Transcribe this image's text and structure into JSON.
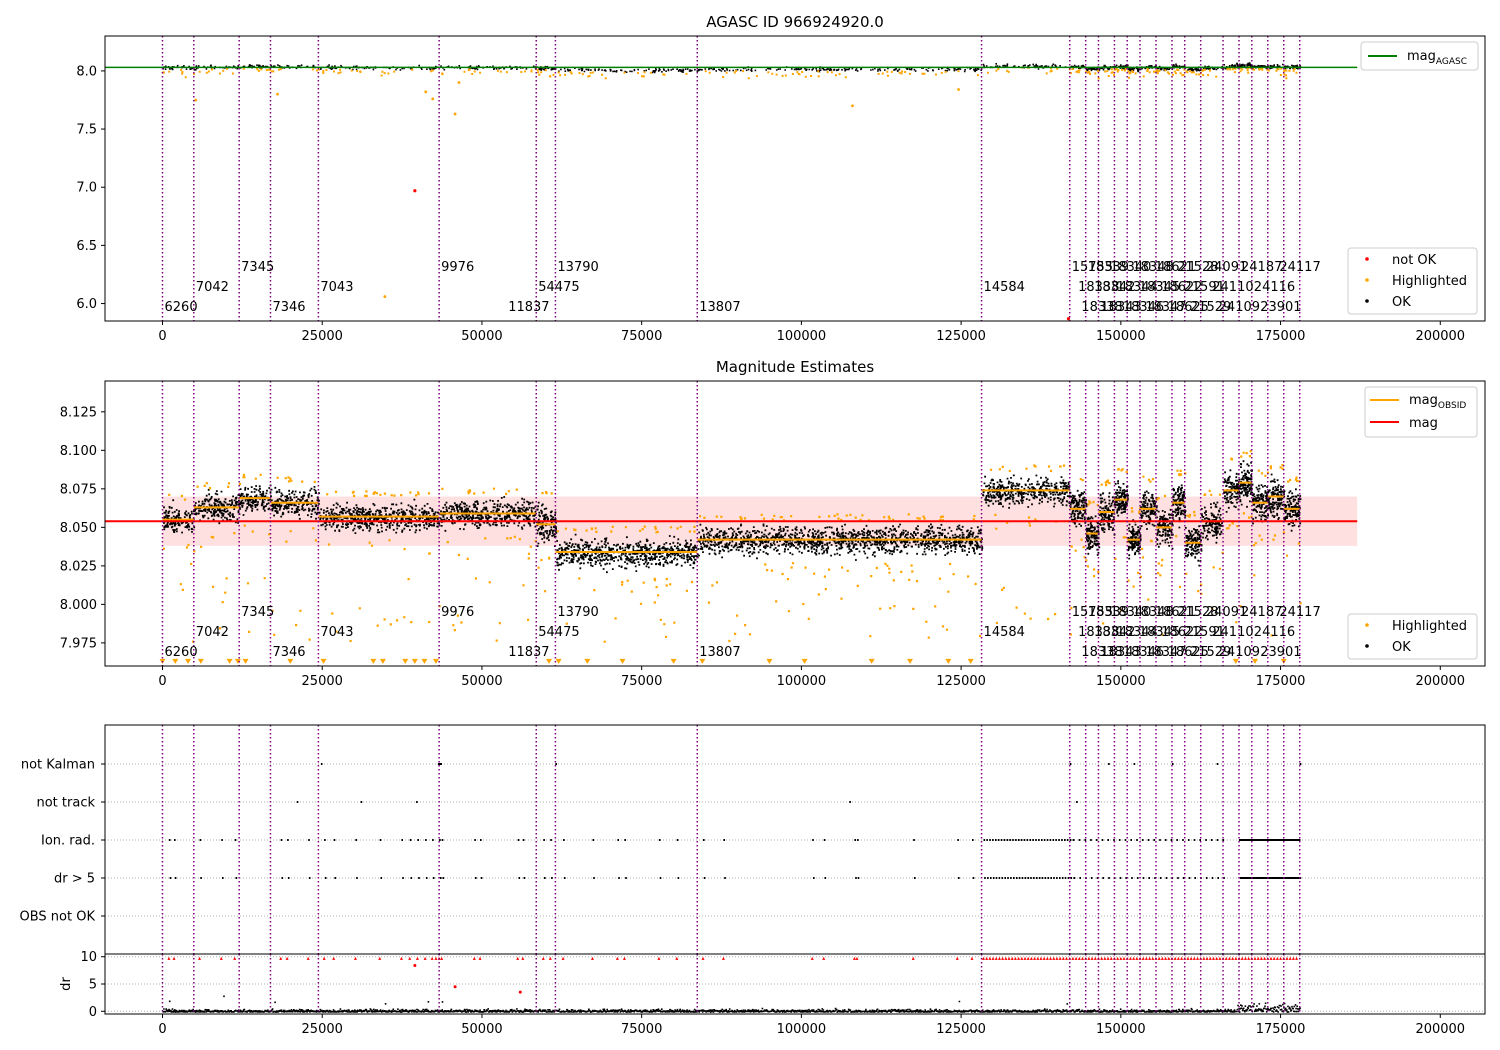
{
  "chart_data": [
    {
      "type": "scatter",
      "title": "AGASC ID 966924920.0",
      "xlabel": "",
      "ylabel": "",
      "xlim": [
        -9000,
        207000
      ],
      "ylim": [
        5.85,
        8.3
      ],
      "xticks": [
        0,
        25000,
        50000,
        75000,
        100000,
        125000,
        150000,
        175000,
        200000
      ],
      "xtick_labels": [
        "0",
        "25000",
        "50000",
        "75000",
        "100000",
        "125000",
        "150000",
        "175000",
        "200000"
      ],
      "yticks": [
        6.0,
        6.5,
        7.0,
        7.5,
        8.0
      ],
      "ytick_labels": [
        "6.0",
        "6.5",
        "7.0",
        "7.5",
        "8.0"
      ],
      "mag_agasc": 8.03,
      "mag_agasc_color": "#008000",
      "not_ok_points": [
        [
          39500,
          6.97
        ],
        [
          141800,
          5.87
        ]
      ],
      "obs_segments": [
        {
          "start": 0,
          "end": 4900,
          "level": 8.055
        },
        {
          "start": 4900,
          "end": 12000,
          "level": 8.063
        },
        {
          "start": 12000,
          "end": 16900,
          "level": 8.069
        },
        {
          "start": 16900,
          "end": 24400,
          "level": 8.066
        },
        {
          "start": 24400,
          "end": 43300,
          "level": 8.057
        },
        {
          "start": 43300,
          "end": 58500,
          "level": 8.059
        },
        {
          "start": 58500,
          "end": 61500,
          "level": 8.052
        },
        {
          "start": 61500,
          "end": 83700,
          "level": 8.034
        },
        {
          "start": 83700,
          "end": 128200,
          "level": 8.042
        },
        {
          "start": 128200,
          "end": 142000,
          "level": 8.074
        },
        {
          "start": 142000,
          "end": 144500,
          "level": 8.062
        },
        {
          "start": 144500,
          "end": 146500,
          "level": 8.046
        },
        {
          "start": 146500,
          "end": 149000,
          "level": 8.06
        },
        {
          "start": 149000,
          "end": 151000,
          "level": 8.068
        },
        {
          "start": 151000,
          "end": 153000,
          "level": 8.042
        },
        {
          "start": 153000,
          "end": 155500,
          "level": 8.062
        },
        {
          "start": 155500,
          "end": 158000,
          "level": 8.05
        },
        {
          "start": 158000,
          "end": 160000,
          "level": 8.066
        },
        {
          "start": 160000,
          "end": 162500,
          "level": 8.04
        },
        {
          "start": 162500,
          "end": 166000,
          "level": 8.054
        },
        {
          "start": 166000,
          "end": 168500,
          "level": 8.074
        },
        {
          "start": 168500,
          "end": 170500,
          "level": 8.079
        },
        {
          "start": 170500,
          "end": 173000,
          "level": 8.066
        },
        {
          "start": 173000,
          "end": 175500,
          "level": 8.07
        },
        {
          "start": 175500,
          "end": 178000,
          "level": 8.062
        }
      ],
      "legend": {
        "placement": "top-right",
        "entries": [
          {
            "label": "mag",
            "sub": "AGASC",
            "color": "#008000"
          }
        ]
      },
      "legend2": {
        "placement": "bottom-right",
        "entries": [
          {
            "label": "not OK",
            "color": "#ff0000"
          },
          {
            "label": "Highlighted",
            "color": "#ffa500"
          },
          {
            "label": "OK",
            "color": "#000000"
          }
        ]
      },
      "obsid_labels": [
        {
          "x": 0,
          "row": 0,
          "text": "6260"
        },
        {
          "x": 4900,
          "row": 1,
          "text": "7042"
        },
        {
          "x": 12000,
          "row": 2,
          "text": "7345"
        },
        {
          "x": 16900,
          "row": 0,
          "text": "7346"
        },
        {
          "x": 24400,
          "row": 1,
          "text": "7043"
        },
        {
          "x": 43300,
          "row": 2,
          "text": "9976"
        },
        {
          "x": 53800,
          "row": 0,
          "text": "11837"
        },
        {
          "x": 58500,
          "row": 1,
          "text": "54475"
        },
        {
          "x": 61500,
          "row": 2,
          "text": "13790"
        },
        {
          "x": 83700,
          "row": 0,
          "text": "13807"
        },
        {
          "x": 128200,
          "row": 1,
          "text": "14584"
        },
        {
          "x": 142000,
          "row": 2,
          "text": "15755"
        },
        {
          "x": 143000,
          "row": 1,
          "text": "18338"
        },
        {
          "x": 143500,
          "row": 0,
          "text": "18338"
        },
        {
          "x": 144500,
          "row": 2,
          "text": "18339"
        },
        {
          "x": 145500,
          "row": 1,
          "text": "18342"
        },
        {
          "x": 146500,
          "row": 0,
          "text": "18343"
        },
        {
          "x": 148000,
          "row": 2,
          "text": "18340"
        },
        {
          "x": 149000,
          "row": 1,
          "text": "18344"
        },
        {
          "x": 150000,
          "row": 0,
          "text": "18346"
        },
        {
          "x": 151500,
          "row": 2,
          "text": "18348"
        },
        {
          "x": 152500,
          "row": 1,
          "text": "18345"
        },
        {
          "x": 153500,
          "row": 0,
          "text": "18347"
        },
        {
          "x": 155000,
          "row": 2,
          "text": "18621"
        },
        {
          "x": 156000,
          "row": 1,
          "text": "18622"
        },
        {
          "x": 157000,
          "row": 0,
          "text": "18625"
        },
        {
          "x": 158500,
          "row": 2,
          "text": "21528"
        },
        {
          "x": 159500,
          "row": 1,
          "text": "21591"
        },
        {
          "x": 160500,
          "row": 0,
          "text": "21529"
        },
        {
          "x": 163000,
          "row": 2,
          "text": "24091"
        },
        {
          "x": 164000,
          "row": 1,
          "text": "24110"
        },
        {
          "x": 165000,
          "row": 0,
          "text": "24109"
        },
        {
          "x": 168500,
          "row": 2,
          "text": "24187"
        },
        {
          "x": 170500,
          "row": 1,
          "text": "24116"
        },
        {
          "x": 171500,
          "row": 0,
          "text": "23901"
        },
        {
          "x": 174500,
          "row": 2,
          "text": "24117"
        }
      ]
    },
    {
      "type": "scatter",
      "title": "Magnitude Estimates",
      "xlabel": "",
      "ylabel": "",
      "xlim": [
        -9000,
        207000
      ],
      "ylim": [
        7.96,
        8.145
      ],
      "xticks": [
        0,
        25000,
        50000,
        75000,
        100000,
        125000,
        150000,
        175000,
        200000
      ],
      "xtick_labels": [
        "0",
        "25000",
        "50000",
        "75000",
        "100000",
        "125000",
        "150000",
        "175000",
        "200000"
      ],
      "yticks": [
        7.975,
        8.0,
        8.025,
        8.05,
        8.075,
        8.1,
        8.125
      ],
      "ytick_labels": [
        "7.975",
        "8.000",
        "8.025",
        "8.050",
        "8.075",
        "8.100",
        "8.125"
      ],
      "mag": 8.054,
      "mag_band": [
        8.038,
        8.07
      ],
      "mag_color": "#ff0000",
      "mag_obsid_color": "#ffa500",
      "legend": {
        "placement": "top-right",
        "entries": [
          {
            "label": "mag",
            "sub": "OBSID",
            "color": "#ffa500"
          },
          {
            "label": "mag",
            "sub": "",
            "color": "#ff0000"
          }
        ]
      },
      "legend2": {
        "placement": "bottom-right",
        "entries": [
          {
            "label": "Highlighted",
            "color": "#ffa500"
          },
          {
            "label": "OK",
            "color": "#000000"
          }
        ]
      }
    },
    {
      "type": "scatter",
      "title": "",
      "xlabel": "",
      "ylabel": "",
      "categories": [
        "not Kalman",
        "not track",
        "Ion. rad.",
        "dr > 5",
        "OBS not OK"
      ],
      "xticks": [
        0,
        25000,
        50000,
        75000,
        100000,
        125000,
        150000,
        175000,
        200000
      ],
      "xtick_labels": [
        "0",
        "25000",
        "50000",
        "75000",
        "100000",
        "125000",
        "150000",
        "175000",
        "200000"
      ]
    },
    {
      "type": "scatter",
      "title": "",
      "xlabel": "",
      "ylabel": "dr",
      "ylim": [
        -0.5,
        10.5
      ],
      "yticks": [
        0,
        5,
        10
      ],
      "ytick_labels": [
        "0",
        "5",
        "10"
      ],
      "xticks": [
        0,
        25000,
        50000,
        75000,
        100000,
        125000,
        150000,
        175000,
        200000
      ],
      "xtick_labels": [
        "0",
        "25000",
        "50000",
        "75000",
        "100000",
        "125000",
        "150000",
        "175000",
        "200000"
      ]
    }
  ]
}
